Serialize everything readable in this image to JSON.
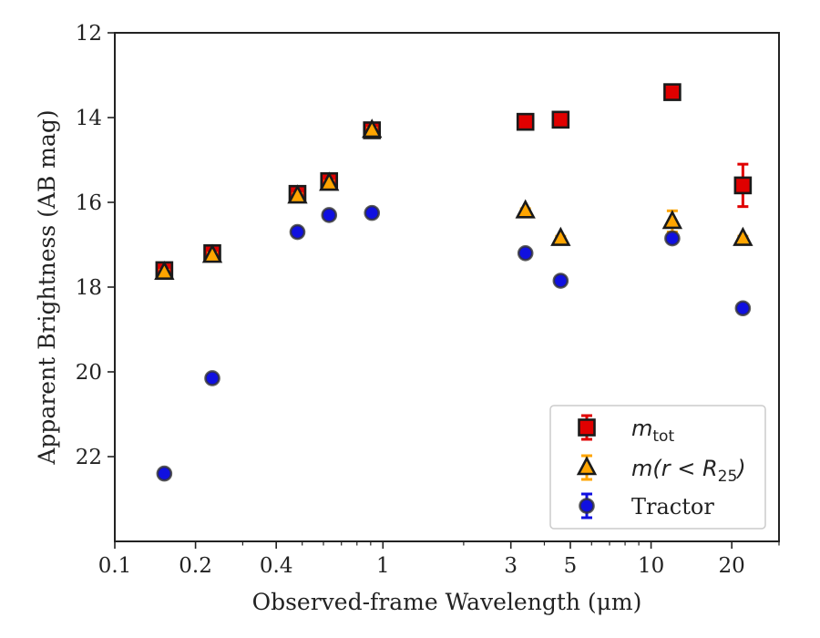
{
  "chart_data": {
    "type": "scatter",
    "title": "",
    "xlabel": "Observed-frame Wavelength (μm)",
    "ylabel": "Apparent Brightness (AB mag)",
    "xscale": "log",
    "xlim": [
      0.1,
      30
    ],
    "ylim": [
      24,
      12
    ],
    "y_inverted": true,
    "x_tick_labels": [
      "0.1",
      "0.2",
      "0.4",
      "1",
      "3",
      "5",
      "10",
      "20"
    ],
    "x_ticks": [
      0.1,
      0.2,
      0.4,
      1,
      3,
      5,
      10,
      20
    ],
    "y_ticks": [
      12,
      14,
      16,
      18,
      20,
      22
    ],
    "y_tick_labels": [
      "12",
      "14",
      "16",
      "18",
      "20",
      "22"
    ],
    "grid": false,
    "legend_position": "lower-right",
    "series": [
      {
        "name": "m_tot",
        "legend_main": "m",
        "legend_sub": "tot",
        "marker": "square",
        "color": "#e00000",
        "x": [
          0.153,
          0.231,
          0.48,
          0.63,
          0.91,
          3.4,
          4.6,
          12.0,
          22.0
        ],
        "y": [
          17.6,
          17.2,
          15.8,
          15.5,
          14.3,
          14.1,
          14.05,
          13.4,
          15.6
        ],
        "yerr": [
          0.05,
          0.05,
          0.05,
          0.05,
          0.05,
          0.05,
          0.05,
          0.05,
          0.5
        ]
      },
      {
        "name": "m(r < R_25)",
        "legend_main": "m(r < R",
        "legend_sub": "25",
        "legend_tail": ")",
        "marker": "triangle",
        "color": "#ffa500",
        "x": [
          0.153,
          0.231,
          0.48,
          0.63,
          0.91,
          3.4,
          4.6,
          12.0,
          22.0
        ],
        "y": [
          17.65,
          17.25,
          15.85,
          15.55,
          14.3,
          16.2,
          16.85,
          16.45,
          16.85
        ],
        "yerr": [
          0.05,
          0.05,
          0.05,
          0.05,
          0.05,
          0.05,
          0.05,
          0.25,
          0.05
        ]
      },
      {
        "name": "Tractor",
        "legend_main": "Tractor",
        "marker": "circle",
        "color": "#1010e0",
        "x": [
          0.153,
          0.231,
          0.48,
          0.63,
          0.91,
          3.4,
          4.6,
          12.0,
          22.0
        ],
        "y": [
          22.4,
          20.15,
          16.7,
          16.3,
          16.25,
          17.2,
          17.85,
          16.85,
          18.5
        ],
        "yerr": [
          0.05,
          0.05,
          0.05,
          0.05,
          0.05,
          0.05,
          0.05,
          0.05,
          0.05
        ]
      }
    ]
  }
}
